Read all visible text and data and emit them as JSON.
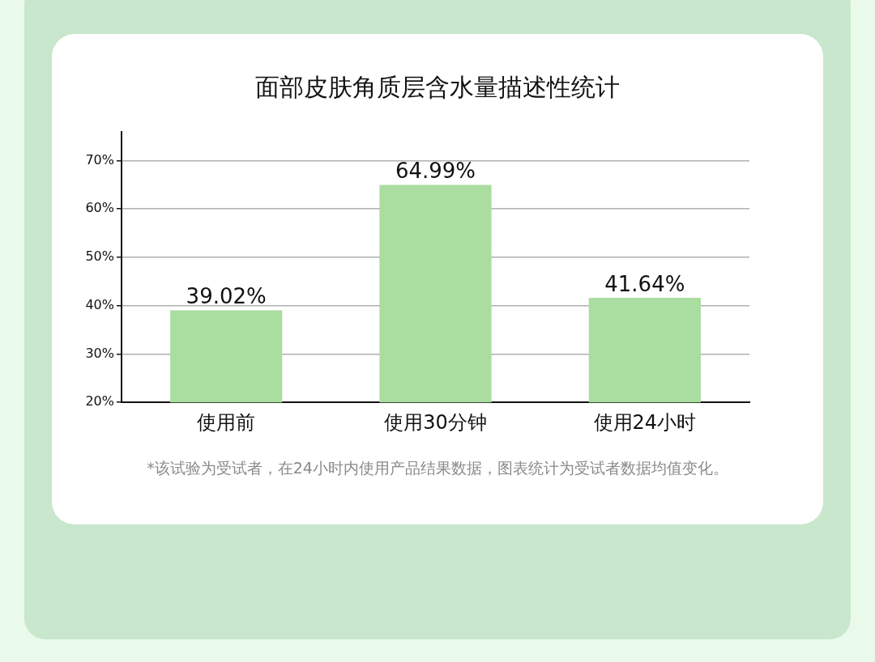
{
  "chart_data": {
    "type": "bar",
    "title": "面部皮肤角质层含水量描述性统计",
    "categories": [
      "使用前",
      "使用30分钟",
      "使用24小时"
    ],
    "values": [
      39.02,
      64.99,
      41.64
    ],
    "value_labels": [
      "39.02%",
      "64.99%",
      "41.64%"
    ],
    "color": "#aadda0",
    "ylim": [
      20,
      76
    ],
    "yticks": [
      {
        "value": 20,
        "label": "20%"
      },
      {
        "value": 30,
        "label": "30%"
      },
      {
        "value": 40,
        "label": "40%"
      },
      {
        "value": 50,
        "label": "50%"
      },
      {
        "value": 60,
        "label": "60%"
      },
      {
        "value": 70,
        "label": "70%"
      }
    ],
    "grid": "y",
    "legend": false,
    "annotations": [
      "*该试验为受试者，在24小时内使用产品结果数据，图表统计为受试者数据均值变化。"
    ]
  }
}
